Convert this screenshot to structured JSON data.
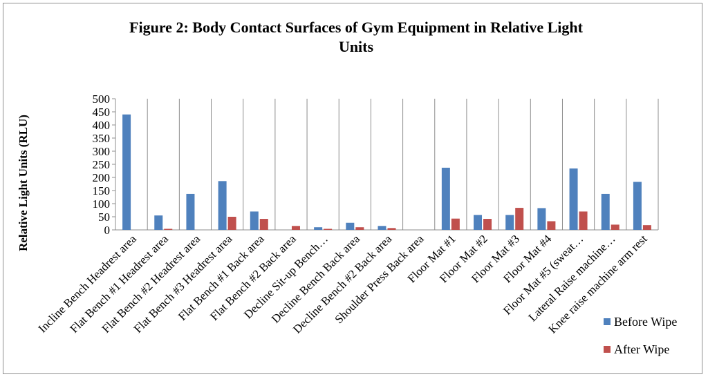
{
  "chart_data": {
    "type": "bar",
    "title_lines": [
      "Figure 2: Body Contact Surfaces of Gym Equipment in Relative Light",
      "Units"
    ],
    "ylabel": "Relative Light Units (RLU)",
    "xlabel": "",
    "ylim": [
      0,
      500
    ],
    "yticks": [
      0,
      50,
      100,
      150,
      200,
      250,
      300,
      350,
      400,
      450,
      500
    ],
    "grid": "vertical category separators",
    "legend_position": "bottom-right",
    "categories": [
      "Incline Bench Headrest area",
      "Flat Bench #1 Headrest area",
      "Flat Bench #2 Headrest area",
      "Flat Bench #3 Headrest area",
      "Flat Bench #1 Back area",
      "Flat Bench #2 Back area",
      "Decline Sit-up Bench…",
      "Decline Bench Back area",
      "Decline Bench #2 Back area",
      "Shoulder Press Back area",
      "Floor Mat #1",
      "Floor Mat #2",
      "Floor Mat #3",
      "Floor Mat #4",
      "Floor Mat #5 (sweat…",
      "Lateral Raise machine…",
      "Knee raise machine arm rest"
    ],
    "series": [
      {
        "name": "Before Wipe",
        "color": "#4F81BD",
        "values": [
          440,
          55,
          137,
          186,
          70,
          0,
          10,
          27,
          15,
          0,
          237,
          57,
          57,
          83,
          234,
          137,
          183
        ]
      },
      {
        "name": "After Wipe",
        "color": "#C0504D",
        "values": [
          0,
          4,
          0,
          50,
          42,
          15,
          4,
          10,
          7,
          0,
          43,
          42,
          84,
          33,
          70,
          20,
          18
        ]
      }
    ]
  }
}
